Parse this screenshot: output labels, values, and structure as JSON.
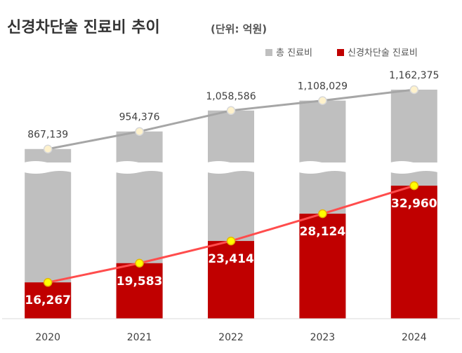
{
  "chart_data": {
    "type": "bar",
    "title": "신경차단술 진료비 추이",
    "subtitle": "(단위: 억원)",
    "categories": [
      "2020",
      "2021",
      "2022",
      "2023",
      "2024"
    ],
    "broken_axis": true,
    "ylim": [
      10000,
      36000
    ],
    "y2lim": [
      800000,
      1260000
    ],
    "legend": "top-right",
    "series": [
      {
        "name": "총 진료비",
        "color": "#bfbfbf",
        "line_color": "#a6a6a6",
        "axis": "y2",
        "values": [
          867139,
          954376,
          1058586,
          1108029,
          1162375
        ],
        "value_labels": [
          "867,139",
          "954,376",
          "1,058,586",
          "1,108,029",
          "1,162,375"
        ]
      },
      {
        "name": "신경차단술 진료비",
        "color": "#c00000",
        "line_color": "#ff4d4d",
        "values": [
          16267,
          19583,
          23414,
          28124,
          32960
        ],
        "value_labels": [
          "16,267",
          "19,583",
          "23,414",
          "28,124",
          "32,960"
        ]
      }
    ]
  }
}
